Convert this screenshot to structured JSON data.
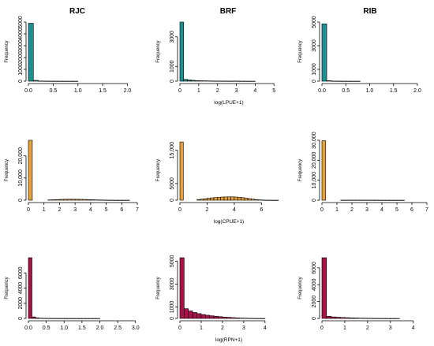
{
  "columns": [
    "RJC",
    "BRF",
    "RIB"
  ],
  "chart_data": [
    {
      "type": "bar",
      "row": 0,
      "col": 0,
      "color": "#1f8f92",
      "title": "RJC",
      "ylabel": "Frequency",
      "xlabel": "",
      "xlim": [
        0,
        2.2
      ],
      "ylim": [
        0,
        5000
      ],
      "xticks": [
        0,
        0.5,
        1,
        1.5,
        2
      ],
      "xtick_labels": [
        "0.0",
        "0.5",
        "1.0",
        "1.5",
        "2.0"
      ],
      "yticks": [
        0,
        1000,
        2000,
        3000,
        4000,
        5000
      ],
      "ytick_labels": [
        "0",
        "1000",
        "2000",
        "3000",
        "4000",
        "5000"
      ],
      "bin_start": 0,
      "bin_width": 0.1,
      "values": [
        4900,
        70,
        15,
        8,
        5,
        3,
        2,
        1,
        1,
        1,
        0,
        0,
        0,
        0,
        0,
        0,
        0,
        0,
        0,
        0,
        0,
        0
      ]
    },
    {
      "type": "bar",
      "row": 0,
      "col": 1,
      "color": "#1f8f92",
      "title": "BRF",
      "ylabel": "Frequency",
      "xlabel": "log(LPUE+1)",
      "xlim": [
        0,
        5.2
      ],
      "ylim": [
        0,
        4000
      ],
      "xticks": [
        0,
        1,
        2,
        3,
        4,
        5
      ],
      "xtick_labels": [
        "0",
        "1",
        "2",
        "3",
        "4",
        "5"
      ],
      "yticks": [
        0,
        1000,
        3000
      ],
      "ytick_labels": [
        "0",
        "1000",
        "3000"
      ],
      "bin_start": 0,
      "bin_width": 0.2,
      "values": [
        4550,
        120,
        90,
        60,
        40,
        30,
        25,
        20,
        15,
        12,
        10,
        8,
        6,
        5,
        10,
        4,
        3,
        2,
        1,
        1,
        0,
        0,
        0,
        0,
        0,
        0
      ]
    },
    {
      "type": "bar",
      "row": 0,
      "col": 2,
      "color": "#1f8f92",
      "title": "RIB",
      "ylabel": "Frequency",
      "xlabel": "",
      "xlim": [
        0,
        2.2
      ],
      "ylim": [
        0,
        5000
      ],
      "xticks": [
        0,
        0.5,
        1,
        1.5,
        2
      ],
      "xtick_labels": [
        "0.0",
        "0.5",
        "1.0",
        "1.5",
        "2.0"
      ],
      "yticks": [
        0,
        1000,
        3000,
        5000
      ],
      "ytick_labels": [
        "0",
        "1000",
        "3000",
        "5000"
      ],
      "bin_start": 0,
      "bin_width": 0.1,
      "values": [
        4850,
        40,
        10,
        5,
        3,
        2,
        1,
        1,
        0,
        0,
        0,
        0,
        0,
        0,
        0,
        0,
        0,
        0,
        0,
        0,
        0,
        0
      ]
    },
    {
      "type": "bar",
      "row": 1,
      "col": 0,
      "color": "#e8a13a",
      "title": "",
      "ylabel": "Frequency",
      "xlabel": "",
      "xlim": [
        0,
        7
      ],
      "ylim": [
        0,
        27000
      ],
      "xticks": [
        0,
        1,
        2,
        3,
        4,
        5,
        6,
        7
      ],
      "xtick_labels": [
        "0",
        "1",
        "2",
        "3",
        "4",
        "5",
        "6",
        "7"
      ],
      "yticks": [
        0,
        10000,
        20000
      ],
      "ytick_labels": [
        "0",
        "10,000",
        "20,000"
      ],
      "bin_start": 0,
      "bin_width": 0.25,
      "values": [
        27000,
        0,
        0,
        0,
        0,
        120,
        200,
        280,
        360,
        420,
        450,
        440,
        420,
        380,
        330,
        270,
        210,
        150,
        100,
        60,
        30,
        15,
        8,
        4,
        2,
        1,
        0,
        0
      ]
    },
    {
      "type": "bar",
      "row": 1,
      "col": 1,
      "color": "#e8a13a",
      "title": "",
      "ylabel": "Frequency",
      "xlabel": "log(CPUE+1)",
      "xlim": [
        0,
        7.2
      ],
      "ylim": [
        0,
        18000
      ],
      "xticks": [
        0,
        2,
        4,
        6
      ],
      "xtick_labels": [
        "0",
        "2",
        "4",
        "6"
      ],
      "yticks": [
        0,
        5000,
        15000
      ],
      "ytick_labels": [
        "0",
        "5000",
        "15,000"
      ],
      "bin_start": 0,
      "bin_width": 0.25,
      "values": [
        17500,
        0,
        0,
        0,
        0,
        200,
        330,
        450,
        580,
        700,
        800,
        880,
        940,
        980,
        1000,
        990,
        950,
        870,
        760,
        620,
        470,
        320,
        190,
        100,
        50,
        20,
        8,
        3,
        1
      ]
    },
    {
      "type": "bar",
      "row": 1,
      "col": 2,
      "color": "#e8a13a",
      "title": "",
      "ylabel": "Frequency",
      "xlabel": "",
      "xlim": [
        0,
        7
      ],
      "ylim": [
        0,
        30000
      ],
      "xticks": [
        0,
        1,
        2,
        3,
        4,
        5,
        6,
        7
      ],
      "xtick_labels": [
        "0",
        "1",
        "2",
        "3",
        "4",
        "5",
        "6",
        "7"
      ],
      "yticks": [
        0,
        10000,
        20000,
        30000
      ],
      "ytick_labels": [
        "0",
        "10,000",
        "20,000",
        "30,000"
      ],
      "bin_start": 0,
      "bin_width": 0.25,
      "values": [
        29800,
        0,
        0,
        0,
        0,
        20,
        30,
        40,
        45,
        45,
        40,
        35,
        30,
        25,
        20,
        15,
        10,
        8,
        5,
        3,
        2,
        1,
        0,
        0,
        0,
        0,
        0,
        0
      ]
    },
    {
      "type": "bar",
      "row": 2,
      "col": 0,
      "color": "#a8124a",
      "title": "",
      "ylabel": "Frequency",
      "xlabel": "",
      "xlim": [
        0,
        3.05
      ],
      "ylim": [
        0,
        8000
      ],
      "xticks": [
        0,
        0.5,
        1,
        1.5,
        2,
        2.5,
        3
      ],
      "xtick_labels": [
        "0.0",
        "0.5",
        "1.0",
        "1.5",
        "2.0",
        "2.5",
        "3.0"
      ],
      "yticks": [
        0,
        2000,
        4000,
        6000
      ],
      "ytick_labels": [
        "0",
        "2000",
        "4000",
        "6000"
      ],
      "bin_start": 0,
      "bin_width": 0.1,
      "values": [
        8000,
        200,
        80,
        40,
        25,
        15,
        10,
        8,
        6,
        5,
        4,
        3,
        3,
        2,
        2,
        1,
        1,
        1,
        1,
        1,
        0,
        0,
        0,
        0,
        0,
        0,
        0,
        0,
        0,
        0
      ]
    },
    {
      "type": "bar",
      "row": 2,
      "col": 1,
      "color": "#a8124a",
      "title": "",
      "ylabel": "Frequency",
      "xlabel": "log(RPN+1)",
      "xlim": [
        0,
        4.6
      ],
      "ylim": [
        0,
        5300
      ],
      "xticks": [
        0,
        1,
        2,
        3,
        4
      ],
      "xtick_labels": [
        "0",
        "1",
        "2",
        "3",
        "4"
      ],
      "yticks": [
        0,
        1000,
        3000,
        5000
      ],
      "ytick_labels": [
        "0",
        "1000",
        "3000",
        "5000"
      ],
      "bin_start": 0,
      "bin_width": 0.2,
      "values": [
        5300,
        850,
        650,
        520,
        420,
        340,
        280,
        230,
        190,
        150,
        120,
        95,
        70,
        50,
        35,
        22,
        12,
        6,
        3,
        1,
        0,
        0,
        0
      ]
    },
    {
      "type": "bar",
      "row": 2,
      "col": 2,
      "color": "#a8124a",
      "title": "",
      "ylabel": "Frequency",
      "xlabel": "",
      "xlim": [
        0,
        4.6
      ],
      "ylim": [
        0,
        7200
      ],
      "xticks": [
        0,
        1,
        2,
        3,
        4
      ],
      "xtick_labels": [
        "0",
        "1",
        "2",
        "3",
        "4"
      ],
      "yticks": [
        0,
        2000,
        4000,
        6000
      ],
      "ytick_labels": [
        "0",
        "2000",
        "4000",
        "6000"
      ],
      "bin_start": 0,
      "bin_width": 0.2,
      "values": [
        7200,
        250,
        180,
        140,
        110,
        90,
        70,
        55,
        40,
        30,
        20,
        12,
        8,
        5,
        3,
        2,
        1,
        0,
        0,
        0,
        0,
        0,
        0
      ]
    }
  ]
}
